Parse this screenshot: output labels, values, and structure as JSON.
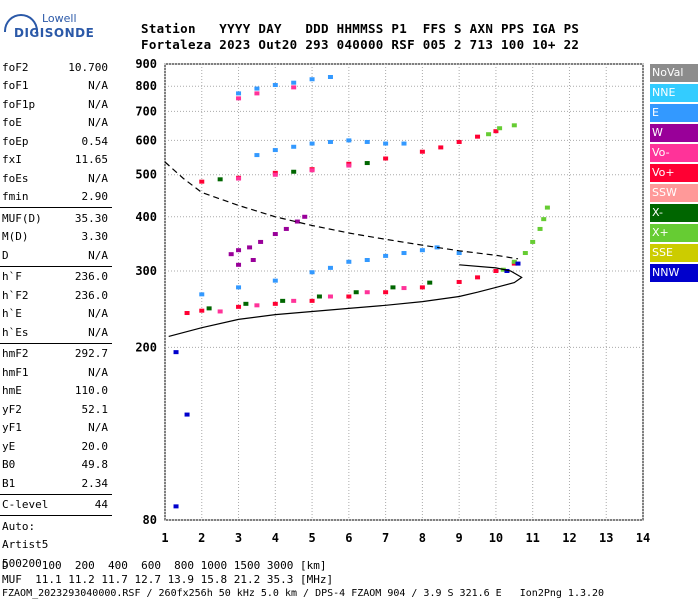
{
  "logo": {
    "line1": "Lowell",
    "line2": "DIGISONDE"
  },
  "header": {
    "line1": "Station   YYYY DAY   DDD HHMMSS P1  FFS S AXN PPS IGA PS",
    "line2": "Fortaleza 2023 Out20 293 040000 RSF 005 2 713 100 10+ 22"
  },
  "params": [
    [
      [
        "foF2",
        "10.700"
      ],
      [
        "foF1",
        "N/A"
      ],
      [
        "foF1p",
        "N/A"
      ],
      [
        "foE",
        "N/A"
      ],
      [
        "foEp",
        "0.54"
      ],
      [
        "fxI",
        "11.65"
      ],
      [
        "foEs",
        "N/A"
      ],
      [
        "fmin",
        "2.90"
      ]
    ],
    [
      [
        "MUF(D)",
        "35.30"
      ],
      [
        "M(D)",
        "3.30"
      ],
      [
        "D",
        "N/A"
      ]
    ],
    [
      [
        "h`F",
        "236.0"
      ],
      [
        "h`F2",
        "236.0"
      ],
      [
        "h`E",
        "N/A"
      ],
      [
        "h`Es",
        "N/A"
      ]
    ],
    [
      [
        "hmF2",
        "292.7"
      ],
      [
        "hmF1",
        "N/A"
      ],
      [
        "hmE",
        "110.0"
      ],
      [
        "yF2",
        "52.1"
      ],
      [
        "yF1",
        "N/A"
      ],
      [
        "yE",
        "20.0"
      ],
      [
        "B0",
        "49.8"
      ],
      [
        "B1",
        "2.34"
      ]
    ],
    [
      [
        "C-level",
        "44"
      ]
    ],
    [
      [
        "Auto:",
        ""
      ],
      [
        "Artist5",
        ""
      ],
      [
        "500200",
        ""
      ]
    ]
  ],
  "legend": [
    {
      "label": "NoVal",
      "color": "#8c8c8c"
    },
    {
      "label": "NNE",
      "color": "#33ccff"
    },
    {
      "label": "E",
      "color": "#3399ff"
    },
    {
      "label": "W",
      "color": "#990099"
    },
    {
      "label": "Vo-",
      "color": "#ff3399"
    },
    {
      "label": "Vo+",
      "color": "#ff0033"
    },
    {
      "label": "SSW",
      "color": "#ff9999"
    },
    {
      "label": "X-",
      "color": "#006600"
    },
    {
      "label": "X+",
      "color": "#66cc33"
    },
    {
      "label": "SSE",
      "color": "#cccc00"
    },
    {
      "label": "NNW",
      "color": "#0000cc"
    }
  ],
  "footer": {
    "line1": "D     100  200  400  600  800 1000 1500 3000 [km]",
    "line2": "MUF  11.1 11.2 11.7 12.7 13.9 15.8 21.2 35.3 [MHz]",
    "line3": "FZAOM_2023293040000.RSF / 260fx256h 50 kHz 5.0 km / DPS-4 FZAOM 904 / 3.9 S 321.6 E   Ion2Png 1.3.20"
  },
  "chart_data": {
    "type": "scatter",
    "xlim": [
      1,
      14
    ],
    "ylim": [
      80,
      900
    ],
    "x_ticks": [
      1,
      2,
      3,
      4,
      5,
      6,
      7,
      8,
      9,
      10,
      11,
      12,
      13,
      14
    ],
    "y_ticks": [
      80,
      200,
      300,
      400,
      500,
      600,
      700,
      800,
      900
    ],
    "y_scale": "log",
    "grid": true,
    "series": [
      {
        "name": "E",
        "points": [
          [
            2.0,
            265
          ],
          [
            3.0,
            275
          ],
          [
            4.0,
            285
          ],
          [
            5.0,
            298
          ],
          [
            5.5,
            305
          ],
          [
            6.0,
            315
          ],
          [
            6.5,
            318
          ],
          [
            7.0,
            325
          ],
          [
            7.5,
            330
          ],
          [
            8.0,
            335
          ],
          [
            8.4,
            340
          ],
          [
            9.0,
            330
          ],
          [
            3.5,
            555
          ],
          [
            4.0,
            570
          ],
          [
            4.5,
            580
          ],
          [
            5.0,
            590
          ],
          [
            5.5,
            595
          ],
          [
            6.0,
            600
          ],
          [
            6.5,
            595
          ],
          [
            7.0,
            590
          ],
          [
            7.5,
            590
          ],
          [
            3.0,
            770
          ],
          [
            3.5,
            790
          ],
          [
            4.0,
            805
          ],
          [
            4.5,
            815
          ],
          [
            5.0,
            830
          ],
          [
            5.5,
            840
          ]
        ]
      },
      {
        "name": "Vo+",
        "points": [
          [
            1.6,
            240
          ],
          [
            2.0,
            243
          ],
          [
            3.0,
            248
          ],
          [
            4.0,
            252
          ],
          [
            5.0,
            256
          ],
          [
            6.0,
            262
          ],
          [
            7.0,
            268
          ],
          [
            8.0,
            275
          ],
          [
            9.0,
            283
          ],
          [
            9.5,
            290
          ],
          [
            10.0,
            300
          ],
          [
            10.5,
            312
          ],
          [
            2.0,
            482
          ],
          [
            3.0,
            492
          ],
          [
            4.0,
            505
          ],
          [
            5.0,
            515
          ],
          [
            6.0,
            530
          ],
          [
            7.0,
            545
          ],
          [
            8.0,
            565
          ],
          [
            8.5,
            578
          ],
          [
            9.0,
            595
          ],
          [
            9.5,
            612
          ],
          [
            10.0,
            630
          ]
        ]
      },
      {
        "name": "Vo-",
        "points": [
          [
            2.5,
            242
          ],
          [
            3.5,
            250
          ],
          [
            4.5,
            256
          ],
          [
            5.5,
            262
          ],
          [
            6.5,
            268
          ],
          [
            7.5,
            274
          ],
          [
            3.0,
            490
          ],
          [
            4.0,
            500
          ],
          [
            5.0,
            512
          ],
          [
            6.0,
            525
          ],
          [
            3.0,
            750
          ],
          [
            3.5,
            770
          ],
          [
            4.5,
            795
          ]
        ]
      },
      {
        "name": "W",
        "points": [
          [
            2.8,
            328
          ],
          [
            3.0,
            335
          ],
          [
            3.3,
            340
          ],
          [
            3.6,
            350
          ],
          [
            4.0,
            365
          ],
          [
            4.3,
            375
          ],
          [
            4.6,
            390
          ],
          [
            3.0,
            310
          ],
          [
            3.4,
            318
          ],
          [
            4.8,
            400
          ]
        ]
      },
      {
        "name": "X-",
        "points": [
          [
            2.2,
            246
          ],
          [
            3.2,
            252
          ],
          [
            4.2,
            256
          ],
          [
            5.2,
            262
          ],
          [
            6.2,
            268
          ],
          [
            7.2,
            275
          ],
          [
            8.2,
            282
          ],
          [
            2.5,
            488
          ],
          [
            4.5,
            508
          ],
          [
            6.5,
            532
          ]
        ]
      },
      {
        "name": "X+",
        "points": [
          [
            10.2,
            302
          ],
          [
            10.5,
            315
          ],
          [
            10.8,
            330
          ],
          [
            11.0,
            350
          ],
          [
            11.2,
            375
          ],
          [
            11.3,
            395
          ],
          [
            11.4,
            420
          ],
          [
            9.8,
            620
          ],
          [
            10.1,
            640
          ],
          [
            10.5,
            650
          ]
        ]
      },
      {
        "name": "NNW",
        "points": [
          [
            10.3,
            300
          ],
          [
            10.6,
            312
          ],
          [
            1.3,
            195
          ],
          [
            1.6,
            140
          ],
          [
            1.3,
            86
          ]
        ]
      }
    ],
    "curves": [
      {
        "name": "dashed",
        "points": [
          [
            1.0,
            535
          ],
          [
            1.5,
            490
          ],
          [
            2.0,
            455
          ],
          [
            3.0,
            425
          ],
          [
            4.0,
            400
          ],
          [
            5.0,
            382
          ],
          [
            6.0,
            367
          ],
          [
            7.0,
            355
          ],
          [
            8.0,
            344
          ],
          [
            9.0,
            334
          ],
          [
            10.0,
            326
          ],
          [
            10.6,
            320
          ]
        ]
      },
      {
        "name": "solid",
        "points": [
          [
            1.1,
            212
          ],
          [
            2.0,
            222
          ],
          [
            3.0,
            232
          ],
          [
            4.0,
            238
          ],
          [
            5.0,
            242
          ],
          [
            6.0,
            246
          ],
          [
            7.0,
            250
          ],
          [
            8.0,
            255
          ],
          [
            9.0,
            262
          ],
          [
            9.5,
            268
          ],
          [
            10.0,
            275
          ],
          [
            10.5,
            282
          ],
          [
            10.7,
            290
          ],
          [
            10.4,
            300
          ],
          [
            10.0,
            305
          ],
          [
            9.0,
            310
          ]
        ]
      }
    ]
  }
}
